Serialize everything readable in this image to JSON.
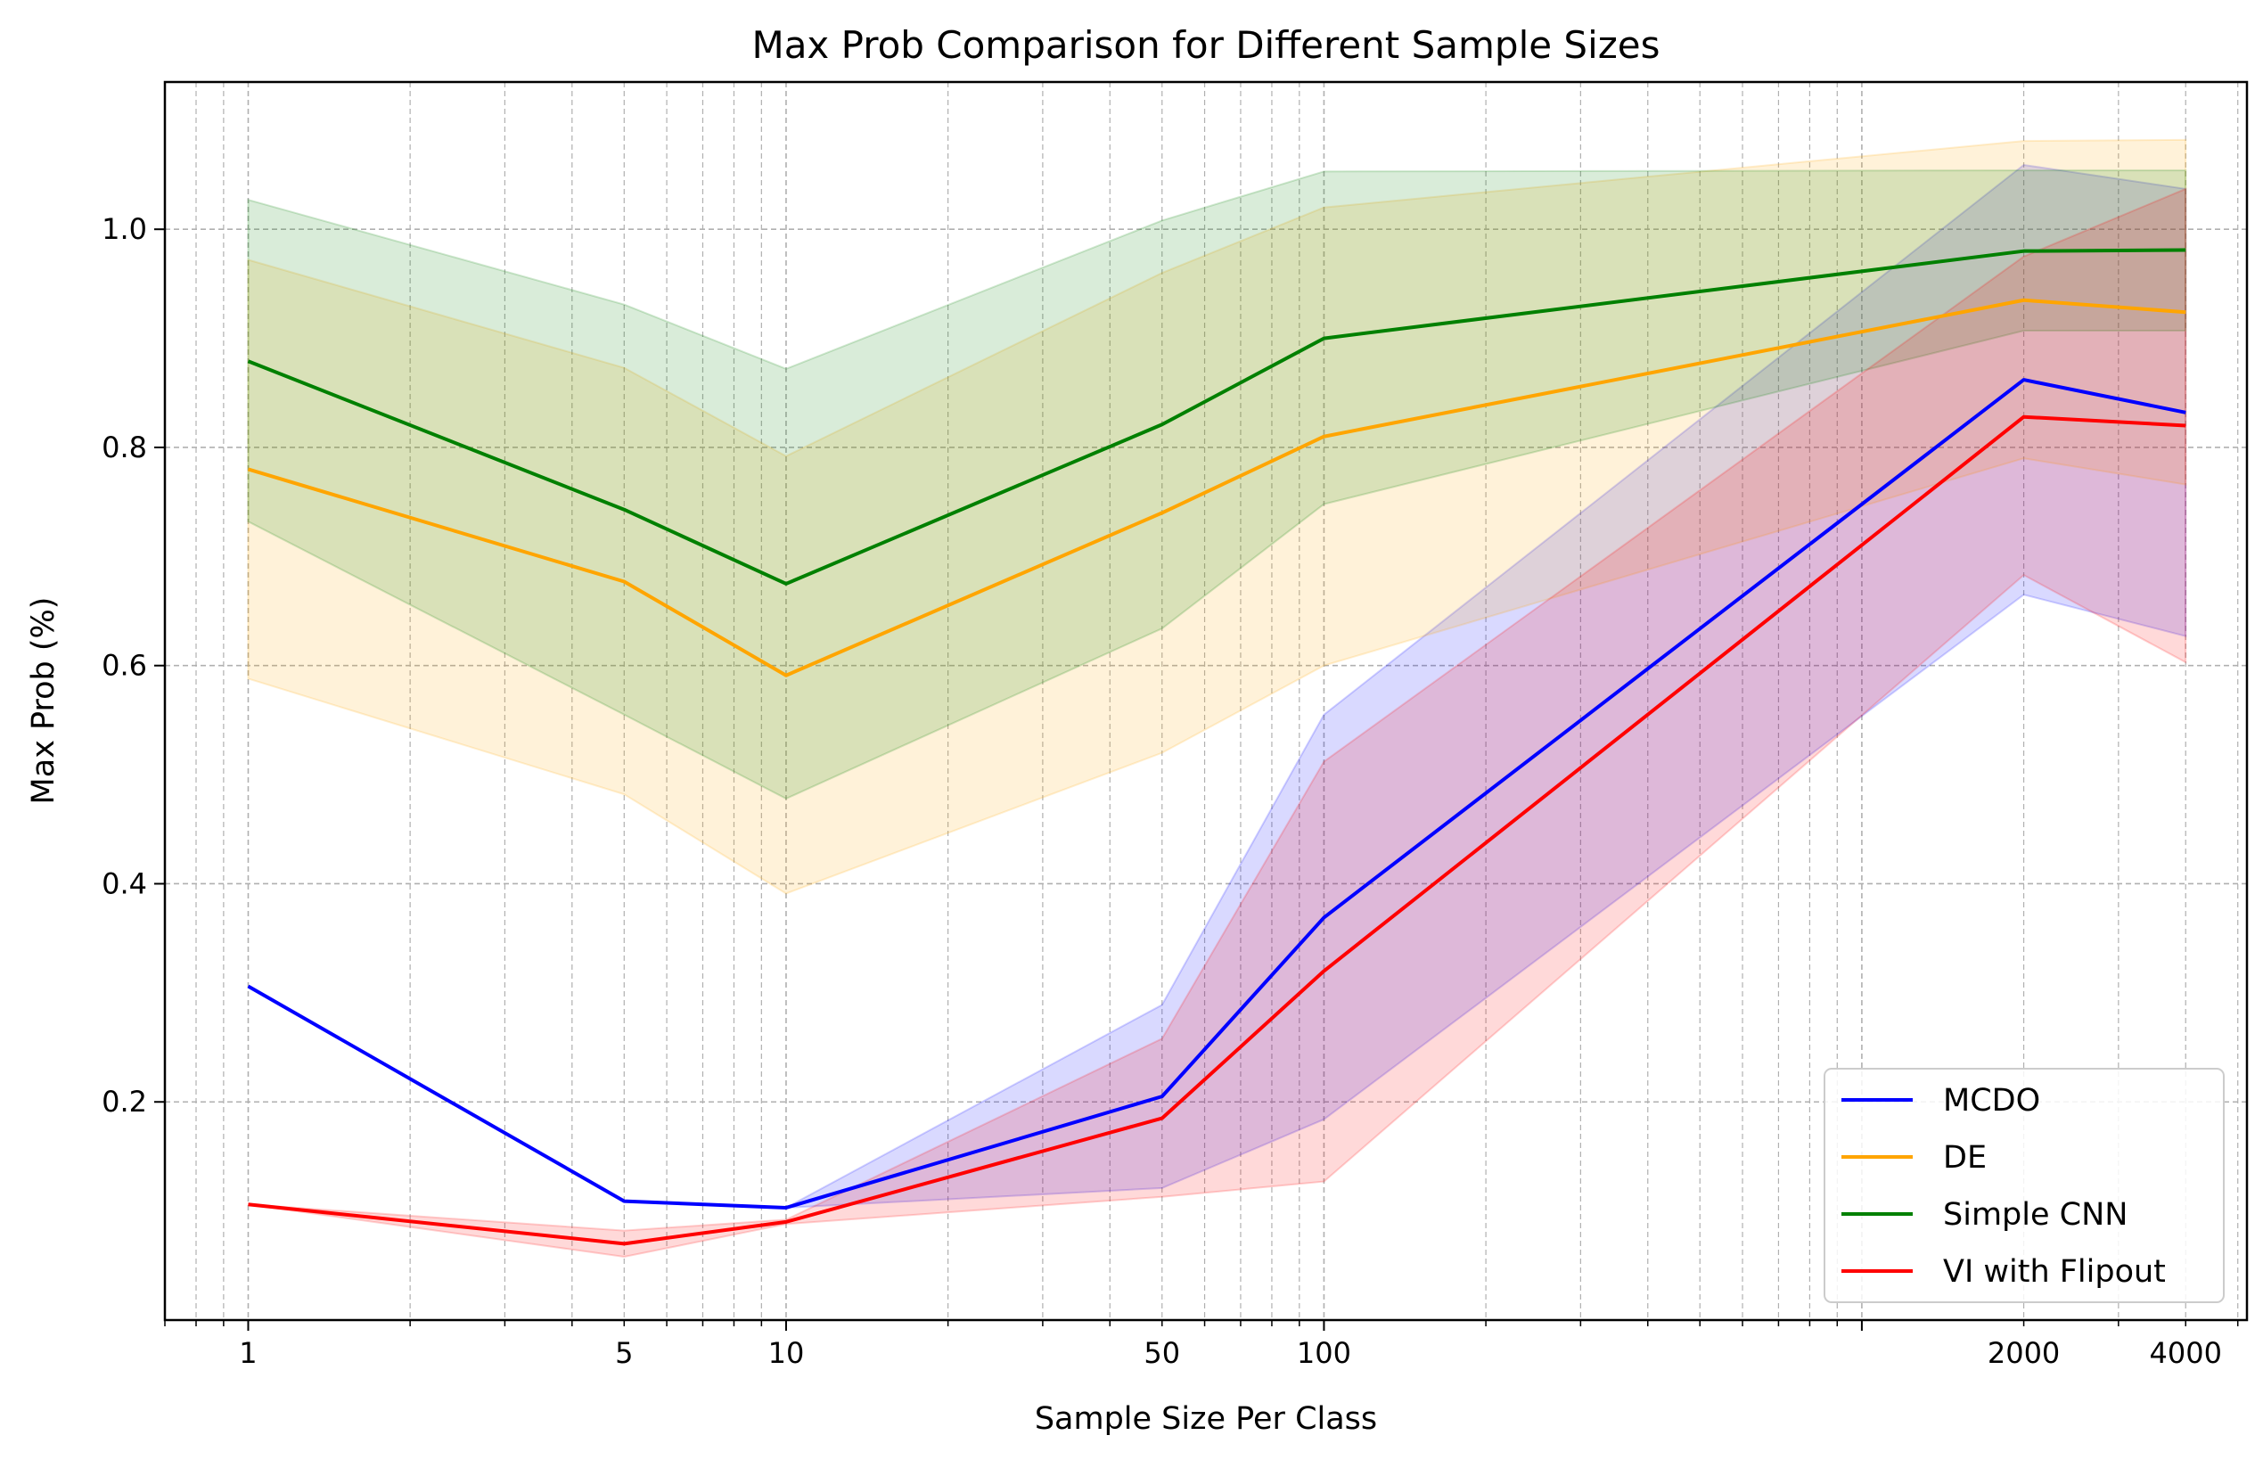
{
  "chart_data": {
    "type": "line",
    "title": "Max Prob Comparison for Different Sample Sizes",
    "xlabel": "Sample Size Per Class",
    "ylabel": "Max Prob (%)",
    "xscale": "log",
    "xlim": [
      0.7,
      5200
    ],
    "ylim": [
      0.0,
      1.135
    ],
    "xticks": [
      1,
      5,
      10,
      50,
      100,
      2000,
      4000
    ],
    "xtick_labels": [
      "1",
      "5",
      "10",
      "50",
      "100",
      "2000",
      "4000"
    ],
    "yticks": [
      0.2,
      0.4,
      0.6,
      0.8,
      1.0
    ],
    "ytick_labels": [
      "0.2",
      "0.4",
      "0.6",
      "0.8",
      "1.0"
    ],
    "grid": true,
    "legend_position": "bottom-right",
    "x": [
      1,
      5,
      10,
      50,
      100,
      2000,
      4000
    ],
    "series": [
      {
        "name": "MCDO",
        "color": "#0000ff",
        "values": [
          0.306,
          0.109,
          0.103,
          0.205,
          0.369,
          0.862,
          0.832
        ],
        "band_lower": [
          null,
          null,
          0.103,
          0.121,
          0.184,
          0.665,
          0.627
        ],
        "band_upper": [
          null,
          null,
          0.103,
          0.289,
          0.555,
          1.059,
          1.037
        ]
      },
      {
        "name": "DE",
        "color": "#ffa500",
        "values": [
          0.78,
          0.677,
          0.591,
          0.74,
          0.81,
          0.935,
          0.924
        ],
        "band_lower": [
          0.588,
          0.482,
          0.391,
          0.52,
          0.6,
          0.79,
          0.766
        ],
        "band_upper": [
          0.972,
          0.873,
          0.792,
          0.96,
          1.02,
          1.081,
          1.082
        ]
      },
      {
        "name": "Simple CNN",
        "color": "#008000",
        "values": [
          0.879,
          0.743,
          0.675,
          0.821,
          0.9,
          0.98,
          0.981
        ],
        "band_lower": [
          0.732,
          0.555,
          0.478,
          0.634,
          0.748,
          0.907,
          0.907
        ],
        "band_upper": [
          1.027,
          0.931,
          0.872,
          1.008,
          1.053,
          1.054,
          1.054
        ]
      },
      {
        "name": "VI with Flipout",
        "color": "#ff0000",
        "values": [
          0.106,
          0.07,
          0.09,
          0.185,
          0.32,
          0.828,
          0.82
        ],
        "band_lower": [
          0.106,
          0.058,
          0.088,
          0.113,
          0.127,
          0.683,
          0.603
        ],
        "band_upper": [
          0.106,
          0.082,
          0.092,
          0.258,
          0.512,
          0.975,
          1.037
        ]
      }
    ]
  }
}
